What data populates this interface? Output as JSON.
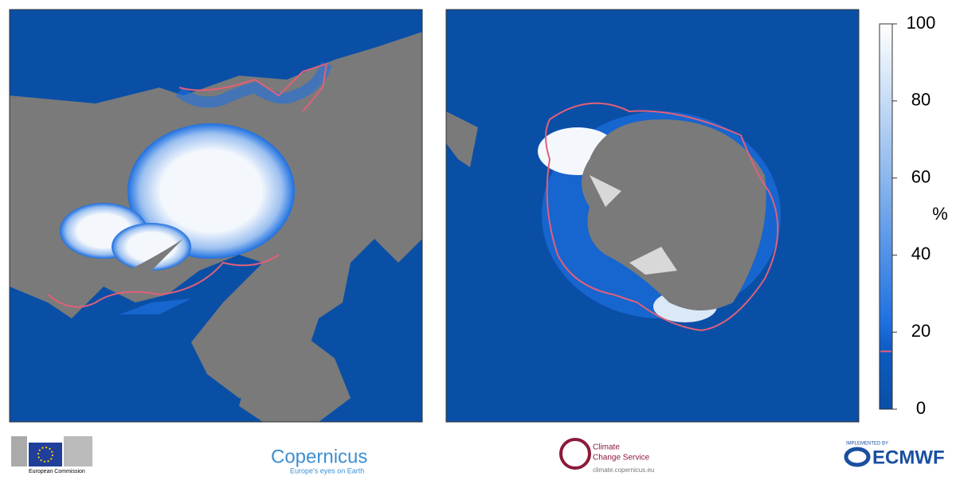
{
  "colorbar": {
    "lim": [
      0,
      100
    ],
    "ticks": [
      0,
      20,
      40,
      60,
      80,
      100
    ],
    "unit": "%",
    "threshold": 15,
    "threshold_color": "#e0607a"
  },
  "logos": {
    "ec": "European Commission",
    "copernicus": "Copernicus",
    "copernicus_tagline": "Europe's eyes on Earth",
    "c3s_1": "Climate",
    "c3s_2": "Change Service",
    "c3s_url": "climate.copernicus.eu",
    "ecmwf_pre": "IMPLEMENTED BY",
    "ecmwf": "ECMWF"
  }
}
